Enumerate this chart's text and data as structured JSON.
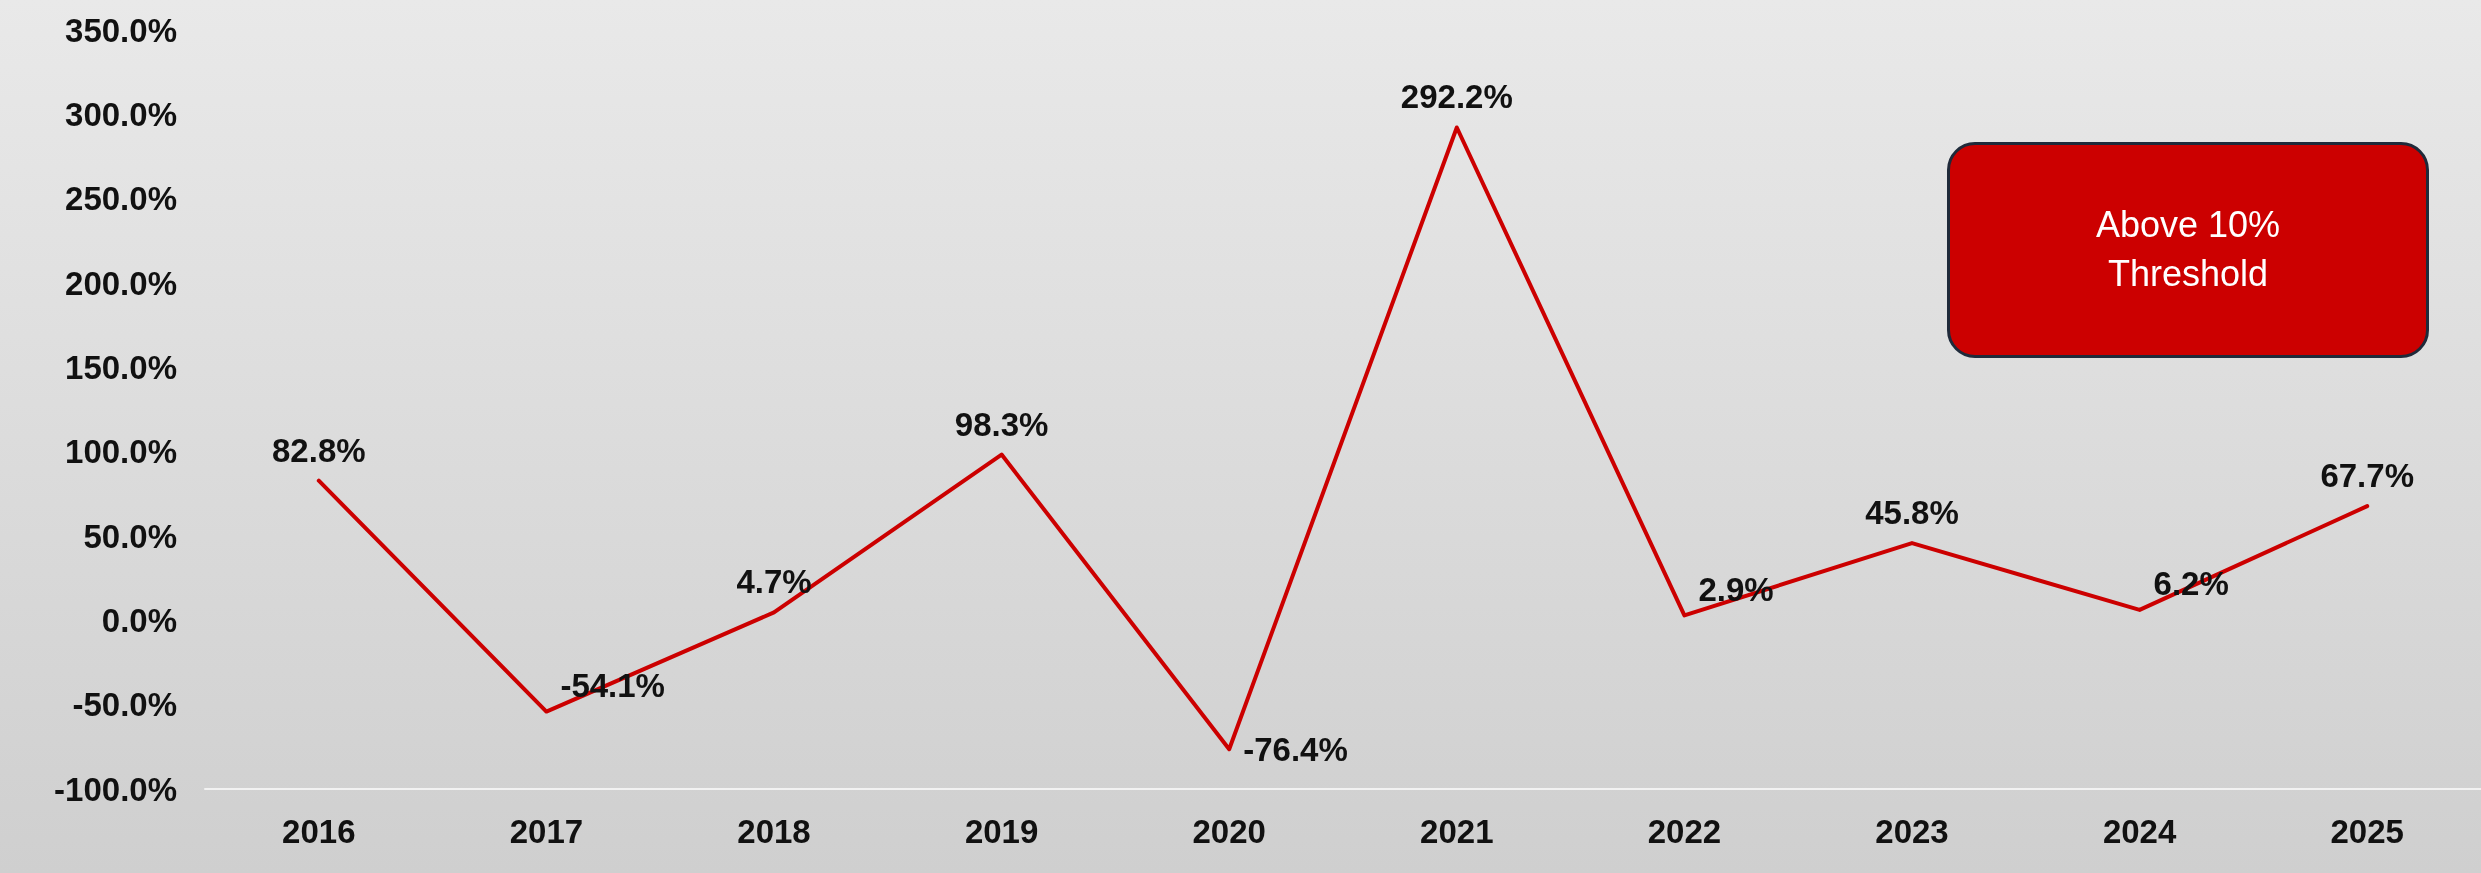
{
  "chart_data": {
    "type": "line",
    "categories": [
      "2016",
      "2017",
      "2018",
      "2019",
      "2020",
      "2021",
      "2022",
      "2023",
      "2024",
      "2025"
    ],
    "series": [
      {
        "color": "#cc0000",
        "values": [
          82.8,
          -54.1,
          4.7,
          98.3,
          -76.4,
          292.2,
          2.9,
          45.8,
          6.2,
          67.7
        ],
        "value_labels": [
          "82.8%",
          "-54.1%",
          "4.7%",
          "98.3%",
          "-76.4%",
          "292.2%",
          "2.9%",
          "45.8%",
          "6.2%",
          "67.7%"
        ]
      }
    ],
    "ylim": [
      -100,
      350
    ],
    "yticks": [
      {
        "value": -100,
        "label": "-100.0%"
      },
      {
        "value": -50,
        "label": "-50.0%"
      },
      {
        "value": 0,
        "label": "0.0%"
      },
      {
        "value": 50,
        "label": "50.0%"
      },
      {
        "value": 100,
        "label": "100.0%"
      },
      {
        "value": 150,
        "label": "150.0%"
      },
      {
        "value": 200,
        "label": "200.0%"
      },
      {
        "value": 250,
        "label": "250.0%"
      },
      {
        "value": 300,
        "label": "300.0%"
      },
      {
        "value": 350,
        "label": "350.0%"
      }
    ],
    "grid": false,
    "marker": "none",
    "line_style": "solid",
    "annotations": [
      "Above 10% Threshold"
    ]
  }
}
